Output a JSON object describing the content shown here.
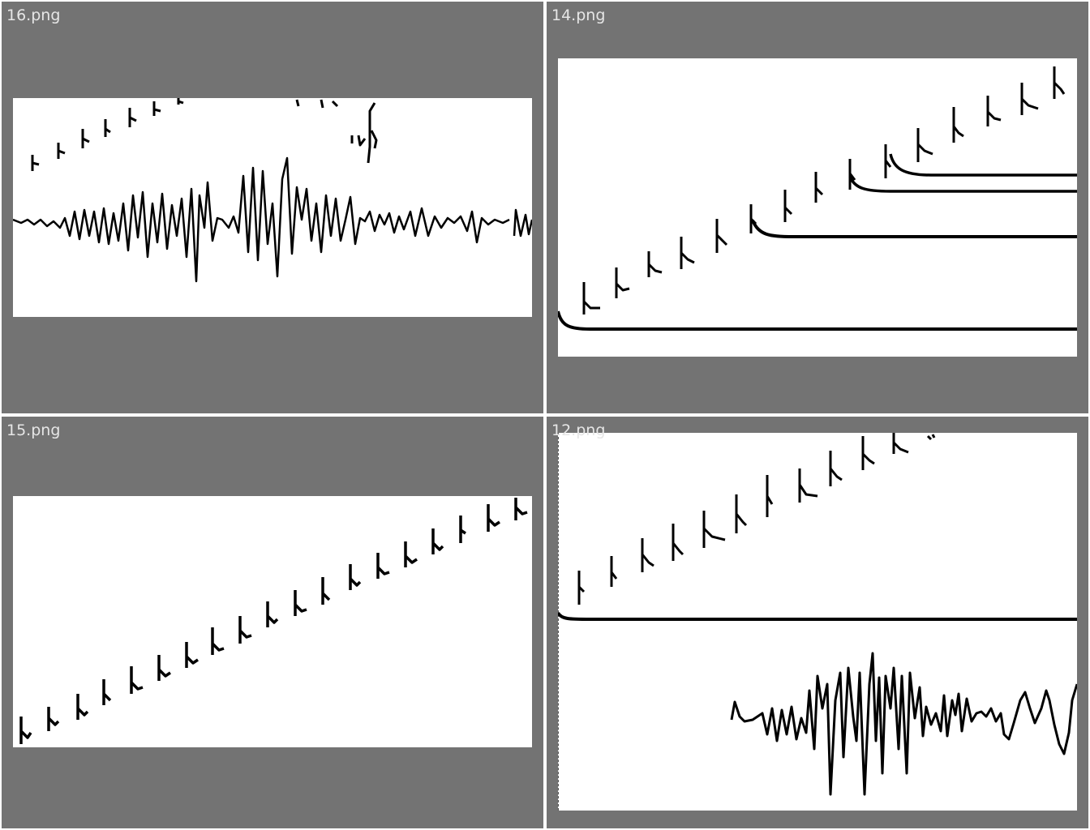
{
  "viewer": {
    "background_color": "#737373",
    "separator_color": "#ffffff",
    "label_color": "#e6e6e6",
    "trace_color": "#000000",
    "images": [
      {
        "filename": "16.png"
      },
      {
        "filename": "14.png"
      },
      {
        "filename": "15.png"
      },
      {
        "filename": "12.png"
      }
    ]
  }
}
